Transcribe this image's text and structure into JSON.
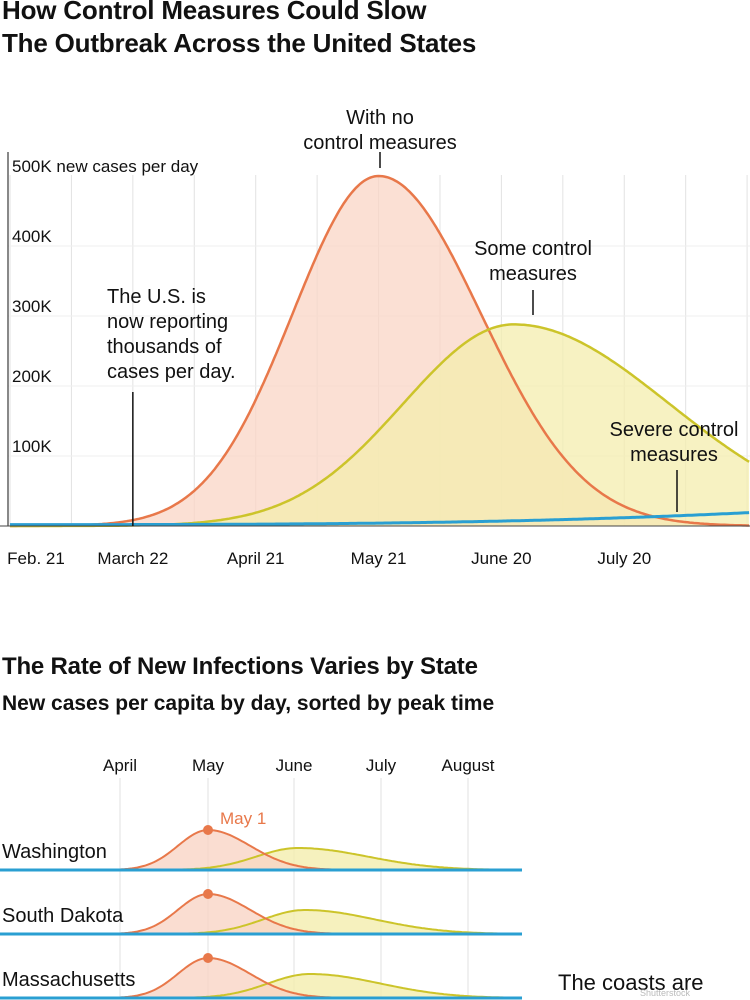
{
  "header": {
    "title_line1": "How Control Measures Could Slow",
    "title_line2": "The Outbreak Across the United States"
  },
  "chart_data": [
    {
      "type": "area",
      "title": "How Control Measures Could Slow The Outbreak Across the United States",
      "ylabel": "new cases per day",
      "y_ticks": [
        "500K new cases per day",
        "400K",
        "300K",
        "200K",
        "100K"
      ],
      "ylim": [
        0,
        500000
      ],
      "x_ticks": [
        "Feb. 21",
        "March 22",
        "April 21",
        "May 21",
        "June 20",
        "July 20"
      ],
      "xlim": [
        "Feb. 21",
        "Aug. 29"
      ],
      "series": [
        {
          "name": "With no control measures",
          "color": "#e8784a",
          "fill": "#f9d5c5",
          "peak_day": 90,
          "peak_value": 500000
        },
        {
          "name": "Some control measures",
          "color": "#ccc42a",
          "fill": "#f4eeae",
          "peak_day": 123,
          "peak_value": 288000
        },
        {
          "name": "Severe control measures",
          "color": "#2a9fd2",
          "fill": "none",
          "end_day": 190,
          "end_value": 22000
        }
      ],
      "annotations": [
        {
          "lines": [
            "With no",
            "control measures"
          ]
        },
        {
          "lines": [
            "Some control",
            "measures"
          ]
        },
        {
          "lines": [
            "Severe control",
            "measures"
          ]
        },
        {
          "lines": [
            "The U.S. is",
            "now reporting",
            "thousands of",
            "cases per day."
          ],
          "day": 30
        }
      ]
    },
    {
      "type": "area",
      "title": "The Rate of New Infections Varies by State",
      "subtitle": "New cases per capita by day, sorted by peak time",
      "x_ticks": [
        "April",
        "May",
        "June",
        "July",
        "August"
      ],
      "peak_label": "May 1",
      "rows": [
        {
          "state": "Washington"
        },
        {
          "state": "South Dakota"
        },
        {
          "state": "Massachusetts"
        }
      ]
    }
  ],
  "section2": {
    "title": "The Rate of New Infections Varies by State",
    "subtitle": "New cases per capita by day, sorted by peak time"
  },
  "teaser": "The coasts are",
  "watermark": "Shutterstock"
}
